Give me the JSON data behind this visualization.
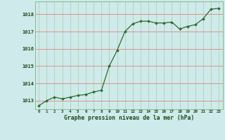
{
  "x": [
    0,
    1,
    2,
    3,
    4,
    5,
    6,
    7,
    8,
    9,
    10,
    11,
    12,
    13,
    14,
    15,
    16,
    17,
    18,
    19,
    20,
    21,
    22,
    23
  ],
  "y": [
    1012.7,
    1013.0,
    1013.2,
    1013.1,
    1013.2,
    1013.3,
    1013.35,
    1013.5,
    1013.6,
    1015.0,
    1015.9,
    1017.0,
    1017.45,
    1017.6,
    1017.6,
    1017.5,
    1017.5,
    1017.55,
    1017.15,
    1017.3,
    1017.4,
    1017.75,
    1018.3,
    1018.35
  ],
  "line_color": "#2d6a2d",
  "marker_color": "#2d6a2d",
  "bg_color": "#ceeaea",
  "grid_color_v": "#b0d4b0",
  "grid_color_h": "#f08080",
  "xlabel": "Graphe pression niveau de la mer (hPa)",
  "xlabel_color": "#1a4a1a",
  "tick_color": "#1a4a1a",
  "ylim": [
    1012.5,
    1018.75
  ],
  "xlim": [
    -0.5,
    23.5
  ],
  "yticks": [
    1013,
    1014,
    1015,
    1016,
    1017,
    1018
  ],
  "xticks": [
    0,
    1,
    2,
    3,
    4,
    5,
    6,
    7,
    8,
    9,
    10,
    11,
    12,
    13,
    14,
    15,
    16,
    17,
    18,
    19,
    20,
    21,
    22,
    23
  ],
  "figsize": [
    3.2,
    2.0
  ],
  "dpi": 100
}
